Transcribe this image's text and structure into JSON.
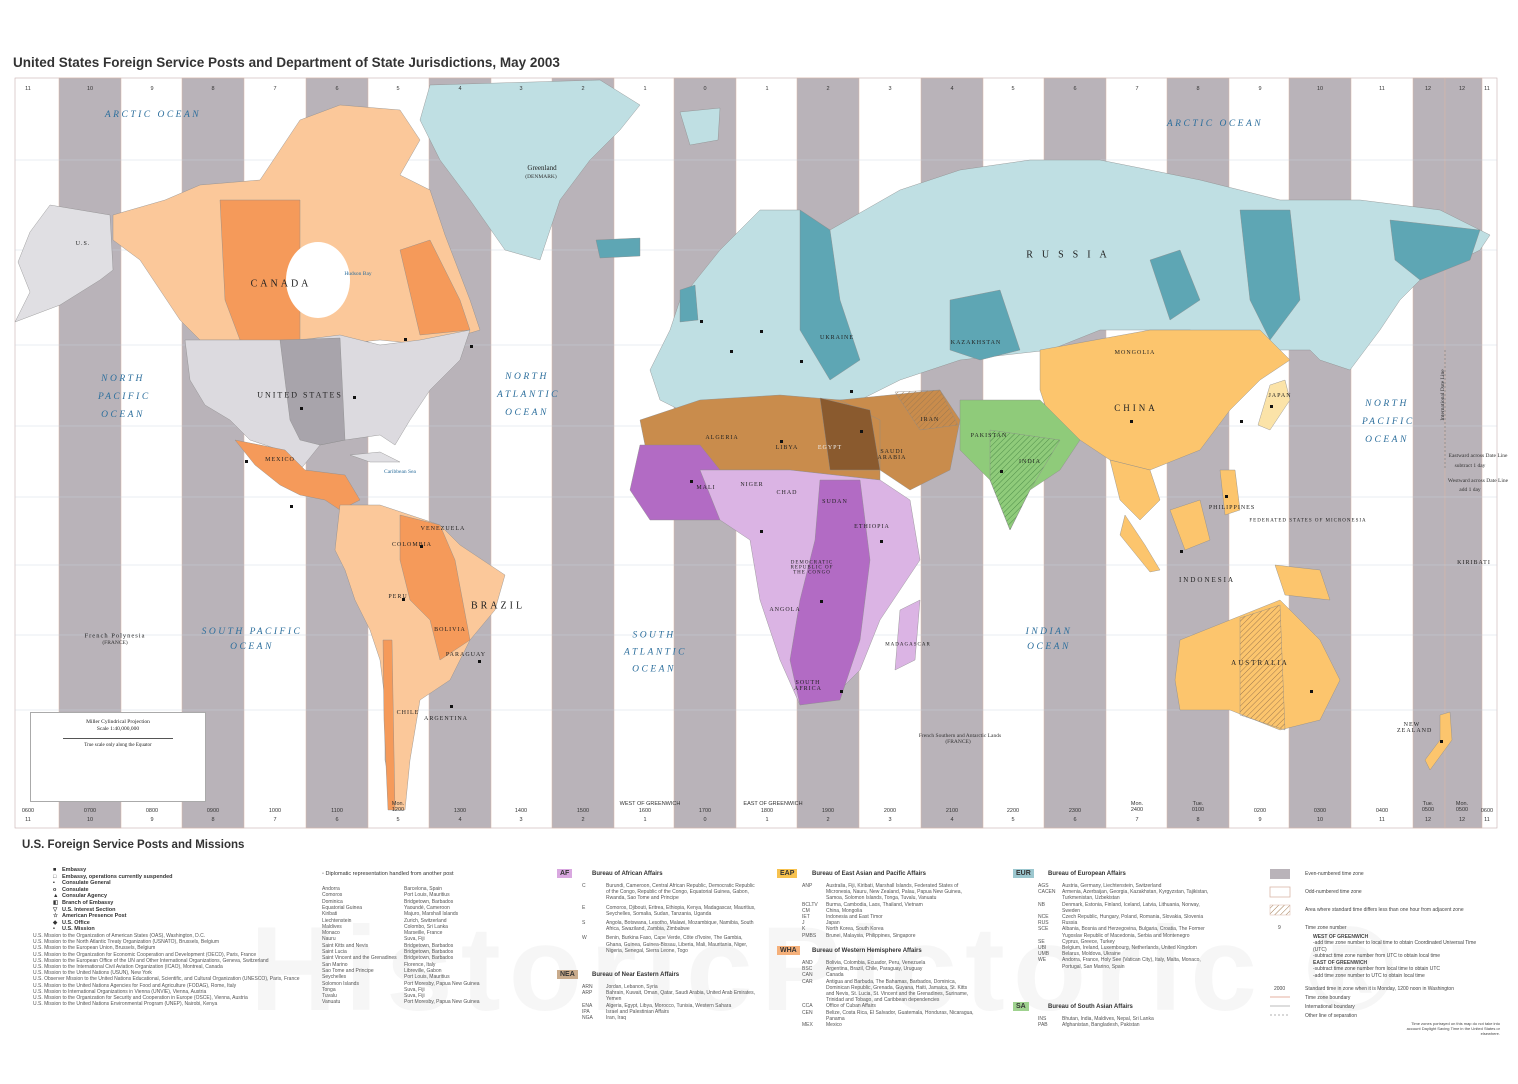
{
  "title": "United States Foreign Service Posts and Department of State Jurisdictions, May 2003",
  "colors": {
    "even_zone": "#b9b3b9",
    "odd_zone": "#ffffff",
    "AF": "#b26bc4",
    "AF_light": "#dbb4e4",
    "EAP": "#fcc56d",
    "EUR": "#5ea6b4",
    "EUR_light": "#bfdfe3",
    "NEA": "#c98c4c",
    "NEA_dark": "#8a5a2e",
    "SA": "#8fcb7a",
    "WHA": "#f59a5a",
    "WHA_light": "#fbc89a",
    "US": "#dcdadf"
  },
  "time_zones": {
    "top_numbers": [
      "11",
      "10",
      "9",
      "8",
      "7",
      "6",
      "5",
      "4",
      "3",
      "2",
      "1",
      "0",
      "1",
      "2",
      "3",
      "4",
      "5",
      "6",
      "7",
      "8",
      "9",
      "10",
      "11",
      "12",
      "12",
      "11"
    ],
    "bottom_times": [
      {
        "day": "",
        "time": "0600"
      },
      {
        "day": "",
        "time": "0700"
      },
      {
        "day": "",
        "time": "0800"
      },
      {
        "day": "",
        "time": "0900"
      },
      {
        "day": "",
        "time": "1000"
      },
      {
        "day": "",
        "time": "1100"
      },
      {
        "day": "Mon.",
        "time": "1200"
      },
      {
        "day": "",
        "time": "1300"
      },
      {
        "day": "",
        "time": "1400"
      },
      {
        "day": "",
        "time": "1500"
      },
      {
        "day": "",
        "time": "1600"
      },
      {
        "day": "",
        "time": "1700"
      },
      {
        "day": "",
        "time": "1800"
      },
      {
        "day": "",
        "time": "1900"
      },
      {
        "day": "",
        "time": "2000"
      },
      {
        "day": "",
        "time": "2100"
      },
      {
        "day": "",
        "time": "2200"
      },
      {
        "day": "",
        "time": "2300"
      },
      {
        "day": "Mon.",
        "time": "2400"
      },
      {
        "day": "Tue.",
        "time": "0100"
      },
      {
        "day": "",
        "time": "0200"
      },
      {
        "day": "",
        "time": "0300"
      },
      {
        "day": "",
        "time": "0400"
      },
      {
        "day": "Tue.",
        "time": "0500"
      },
      {
        "day": "Mon.",
        "time": "0500"
      },
      {
        "day": "",
        "time": "0600"
      }
    ],
    "west_of_greenwich": "WEST OF GREENWICH",
    "east_of_greenwich": "EAST OF GREENWICH",
    "date_line": "International Date Line",
    "eastward": "Eastward across Date Line",
    "eastward_sub": "subtract 1 day",
    "westward": "Westward across Date Line",
    "westward_sub": "add 1 day"
  },
  "map": {
    "labels": {
      "canada": "CANADA",
      "united_states": "UNITED STATES",
      "us_alaska": "U.S.",
      "mexico": "MEXICO",
      "colombia": "COLOMBIA",
      "venezuela": "VENEZUELA",
      "peru": "PERU",
      "bolivia": "BOLIVIA",
      "brazil": "BRAZIL",
      "paraguay": "PARAGUAY",
      "chile": "CHILE",
      "argentina": "ARGENTINA",
      "greenland": "Greenland",
      "greenland_sub": "(DENMARK)",
      "russia": "RUSSIA",
      "kazakhstan": "KAZAKHSTAN",
      "ukraine": "UKRAINE",
      "mongolia": "MONGOLIA",
      "china": "CHINA",
      "japan": "JAPAN",
      "india": "INDIA",
      "pakistan": "PAKISTAN",
      "iran": "IRAN",
      "saudi_arabia": "SAUDI ARABIA",
      "algeria": "ALGERIA",
      "libya": "LIBYA",
      "egypt": "EGYPT",
      "mali": "MALI",
      "niger": "NIGER",
      "chad": "CHAD",
      "sudan": "SUDAN",
      "ethiopia": "ETHIOPIA",
      "drc": "DEMOCRATIC REPUBLIC OF THE CONGO",
      "angola": "ANGOLA",
      "south_africa": "SOUTH AFRICA",
      "madagascar": "MADAGASCAR",
      "philippines": "PHILIPPINES",
      "indonesia": "INDONESIA",
      "australia": "AUSTRALIA",
      "new_zealand": "NEW ZEALAND",
      "micronesia": "FEDERATED STATES OF MICRONESIA",
      "kiribati": "KIRIBATI",
      "french_polynesia": "French Polynesia",
      "french_polynesia_sub": "(FRANCE)",
      "french_southern": "French Southern and Antarctic Lands",
      "french_southern_sub": "(FRANCE)",
      "arctic_ocean_w": "ARCTIC OCEAN",
      "arctic_ocean_e": "ARCTIC OCEAN",
      "north_pacific_w": "NORTH PACIFIC OCEAN",
      "north_pacific_e": "NORTH PACIFIC OCEAN",
      "north_atlantic": "NORTH ATLANTIC OCEAN",
      "south_pacific": "SOUTH PACIFIC OCEAN",
      "south_atlantic": "SOUTH ATLANTIC OCEAN",
      "indian_ocean": "INDIAN OCEAN",
      "hudson_bay": "Hudson Bay",
      "caribbean": "Caribbean Sea"
    },
    "projection": {
      "name": "Miller Cylindrical Projection",
      "scale": "Scale 1:40,000,000",
      "note": "True scale only along the Equator"
    }
  },
  "legend": {
    "heading": "U.S. Foreign Service Posts and Missions",
    "symbols": [
      {
        "icon": "embassy-icon",
        "glyph": "■",
        "label": "Embassy"
      },
      {
        "icon": "embassy-suspended-icon",
        "glyph": "□",
        "label": "Embassy, operations currently suspended"
      },
      {
        "icon": "consulate-general-icon",
        "glyph": "▪",
        "label": "Consulate General"
      },
      {
        "icon": "consulate-icon",
        "glyph": "o",
        "label": "Consulate"
      },
      {
        "icon": "consular-agency-icon",
        "glyph": "▲",
        "label": "Consular Agency"
      },
      {
        "icon": "branch-of-embassy-icon",
        "glyph": "◧",
        "label": "Branch of Embassy"
      },
      {
        "icon": "interest-section-icon",
        "glyph": "▽",
        "label": "U.S. Interest Section"
      },
      {
        "icon": "american-presence-post-icon",
        "glyph": "☆",
        "label": "American Presence Post"
      },
      {
        "icon": "us-office-icon",
        "glyph": "◆",
        "label": "U.S. Office"
      },
      {
        "icon": "us-mission-icon",
        "glyph": "•",
        "label": "U.S. Mission"
      }
    ],
    "missions": [
      "U.S. Mission to the Organization of American States (OAS), Washington, D.C.",
      "U.S. Mission to the North Atlantic Treaty Organization (USNATO), Brussels, Belgium",
      "U.S. Mission to the European Union, Brussels, Belgium",
      "U.S. Mission to the Organization for Economic Cooperation and Development (OECD), Paris, France",
      "U.S. Mission to the European Office of the UN and Other International Organizations, Geneva, Switzerland",
      "U.S. Mission to the International Civil Aviation Organization (ICAO), Montreal, Canada",
      "U.S. Mission to the United Nations (USUN), New York",
      "U.S. Observer Mission to the United Nations Educational, Scientific, and Cultural Organization (UNESCO), Paris, France",
      "U.S. Mission to the United Nations Agencies for Food and Agriculture (FODAG), Rome, Italy",
      "U.S. Mission to International Organizations in Vienna (UNVIE), Vienna, Austria",
      "U.S. Mission to the Organization for Security and Cooperation in Europe (OSCE), Vienna, Austria",
      "U.S. Mission to the United Nations Environmental Program (UNEP), Nairobi, Kenya"
    ],
    "diplomatic_heading": "Diplomatic representation handled from another post",
    "diplomatic": [
      {
        "country": "Andorra",
        "post": "Barcelona, Spain"
      },
      {
        "country": "Comoros",
        "post": "Port Louis, Mauritius"
      },
      {
        "country": "Dominica",
        "post": "Bridgetown, Barbados"
      },
      {
        "country": "Equatorial Guinea",
        "post": "Yaoundé, Cameroon"
      },
      {
        "country": "Kiribati",
        "post": "Majuro, Marshall Islands"
      },
      {
        "country": "Liechtenstein",
        "post": "Zurich, Switzerland"
      },
      {
        "country": "Maldives",
        "post": "Colombo, Sri Lanka"
      },
      {
        "country": "Monaco",
        "post": "Marseille, France"
      },
      {
        "country": "Nauru",
        "post": "Suva, Fiji"
      },
      {
        "country": "Saint Kitts and Nevis",
        "post": "Bridgetown, Barbados"
      },
      {
        "country": "Saint Lucia",
        "post": "Bridgetown, Barbados"
      },
      {
        "country": "Saint Vincent and the Grenadines",
        "post": "Bridgetown, Barbados"
      },
      {
        "country": "San Marino",
        "post": "Florence, Italy"
      },
      {
        "country": "Sao Tome and Principe",
        "post": "Libreville, Gabon"
      },
      {
        "country": "Seychelles",
        "post": "Port Louis, Mauritius"
      },
      {
        "country": "Solomon Islands",
        "post": "Port Moresby, Papua New Guinea"
      },
      {
        "country": "Tonga",
        "post": "Suva, Fiji"
      },
      {
        "country": "Tuvalu",
        "post": "Suva, Fiji"
      },
      {
        "country": "Vanuatu",
        "post": "Port Moresby, Papua New Guinea"
      }
    ],
    "bureaus": {
      "af": {
        "code": "AF",
        "name": "Bureau of African Affairs",
        "rows": [
          {
            "k": "C",
            "v": "Burundi, Cameroon, Central African Republic, Democratic Republic of the Congo, Republic of the Congo, Equatorial Guinea, Gabon, Rwanda, Sao Tome and Principe"
          },
          {
            "k": "E",
            "v": "Comoros, Djibouti, Eritrea, Ethiopia, Kenya, Madagascar, Mauritius, Seychelles, Somalia, Sudan, Tanzania, Uganda"
          },
          {
            "k": "S",
            "v": "Angola, Botswana, Lesotho, Malawi, Mozambique, Namibia, South Africa, Swaziland, Zambia, Zimbabwe"
          },
          {
            "k": "W",
            "v": "Benin, Burkina Faso, Cape Verde, Côte d'Ivoire, The Gambia, Ghana, Guinea, Guinea-Bissau, Liberia, Mali, Mauritania, Niger, Nigeria, Senegal, Sierra Leone, Togo"
          }
        ]
      },
      "nea": {
        "code": "NEA",
        "name": "Bureau of Near Eastern Affairs",
        "rows": [
          {
            "k": "ARN",
            "v": "Jordan, Lebanon, Syria"
          },
          {
            "k": "ARP",
            "v": "Bahrain, Kuwait, Oman, Qatar, Saudi Arabia, United Arab Emirates, Yemen"
          },
          {
            "k": "ENA",
            "v": "Algeria, Egypt, Libya, Morocco, Tunisia, Western Sahara"
          },
          {
            "k": "IPA",
            "v": "Israel and Palestinian Affairs"
          },
          {
            "k": "NGA",
            "v": "Iran, Iraq"
          }
        ]
      },
      "eap": {
        "code": "EAP",
        "name": "Bureau of East Asian and Pacific Affairs",
        "rows": [
          {
            "k": "ANP",
            "v": "Australia, Fiji, Kiribati, Marshall Islands, Federated States of Micronesia, Nauru, New Zealand, Palau, Papua New Guinea, Samoa, Solomon Islands, Tonga, Tuvalu, Vanuatu"
          },
          {
            "k": "BCLTV",
            "v": "Burma, Cambodia, Laos, Thailand, Vietnam"
          },
          {
            "k": "CM",
            "v": "China, Mongolia"
          },
          {
            "k": "IET",
            "v": "Indonesia and East Timor"
          },
          {
            "k": "J",
            "v": "Japan"
          },
          {
            "k": "K",
            "v": "North Korea, South Korea"
          },
          {
            "k": "PMBS",
            "v": "Brunei, Malaysia, Philippines, Singapore"
          }
        ]
      },
      "wha": {
        "code": "WHA",
        "name": "Bureau of Western Hemisphere Affairs",
        "rows": [
          {
            "k": "AND",
            "v": "Bolivia, Colombia, Ecuador, Peru, Venezuela"
          },
          {
            "k": "BSC",
            "v": "Argentina, Brazil, Chile, Paraguay, Uruguay"
          },
          {
            "k": "CAN",
            "v": "Canada"
          },
          {
            "k": "CAR",
            "v": "Antigua and Barbuda, The Bahamas, Barbados, Dominica, Dominican Republic, Grenada, Guyana, Haiti, Jamaica, St. Kitts and Nevis, St. Lucia, St. Vincent and the Grenadines, Suriname, Trinidad and Tobago, and Caribbean dependencies"
          },
          {
            "k": "CCA",
            "v": "Office of Cuban Affairs"
          },
          {
            "k": "CEN",
            "v": "Belize, Costa Rica, El Salvador, Guatemala, Honduras, Nicaragua, Panama"
          },
          {
            "k": "MEX",
            "v": "Mexico"
          }
        ]
      },
      "eur": {
        "code": "EUR",
        "name": "Bureau of European Affairs",
        "rows": [
          {
            "k": "AGS",
            "v": "Austria, Germany, Liechtenstein, Switzerland"
          },
          {
            "k": "CACEN",
            "v": "Armenia, Azerbaijan, Georgia, Kazakhstan, Kyrgyzstan, Tajikistan, Turkmenistan, Uzbekistan"
          },
          {
            "k": "NB",
            "v": "Denmark, Estonia, Finland, Iceland, Latvia, Lithuania, Norway, Sweden"
          },
          {
            "k": "NCE",
            "v": "Czech Republic, Hungary, Poland, Romania, Slovakia, Slovenia"
          },
          {
            "k": "RUS",
            "v": "Russia"
          },
          {
            "k": "SCE",
            "v": "Albania, Bosnia and Herzegovina, Bulgaria, Croatia, The Former Yugoslav Republic of Macedonia, Serbia and Montenegro"
          },
          {
            "k": "SE",
            "v": "Cyprus, Greece, Turkey"
          },
          {
            "k": "UBI",
            "v": "Belgium, Ireland, Luxembourg, Netherlands, United Kingdom"
          },
          {
            "k": "UMB",
            "v": "Belarus, Moldova, Ukraine"
          },
          {
            "k": "WE",
            "v": "Andorra, France, Holy See (Vatican City), Italy, Malta, Monaco, Portugal, San Marino, Spain"
          }
        ]
      },
      "sa": {
        "code": "SA",
        "name": "Bureau of South Asian Affairs",
        "rows": [
          {
            "k": "INS",
            "v": "Bhutan, India, Maldives, Nepal, Sri Lanka"
          },
          {
            "k": "PAB",
            "v": "Afghanistan, Bangladesh, Pakistan"
          }
        ]
      }
    },
    "timezone_legend": {
      "even": "Even-numbered time zone",
      "odd": "Odd-numbered time zone",
      "partial": "Area where standard time differs less than one hour from adjacent zone",
      "number_sample": "9",
      "number_label": "Time zone number",
      "west_head": "WEST OF GREENWICH",
      "west_1": "-add time zone number to local time to obtain Coordinated Universal Time (UTC)",
      "west_2": "-subtract time zone number from UTC to obtain local time",
      "east_head": "EAST OF GREENWICH",
      "east_1": "-subtract time zone number from local time to obtain UTC",
      "east_2": "-add time zone number to UTC to obtain local time",
      "time_sample": "2000",
      "time_label": "Standard time in zone when it is Monday, 1200 noon in Washington",
      "tz_boundary": "Time zone boundary",
      "intl_boundary": "International boundary",
      "other_line": "Other line of separation",
      "footnote": "Time zones portrayed on this map do not take into account Daylight Saving Time in the United States or elsewhere."
    }
  },
  "watermark": "HistoricPictoric ®"
}
